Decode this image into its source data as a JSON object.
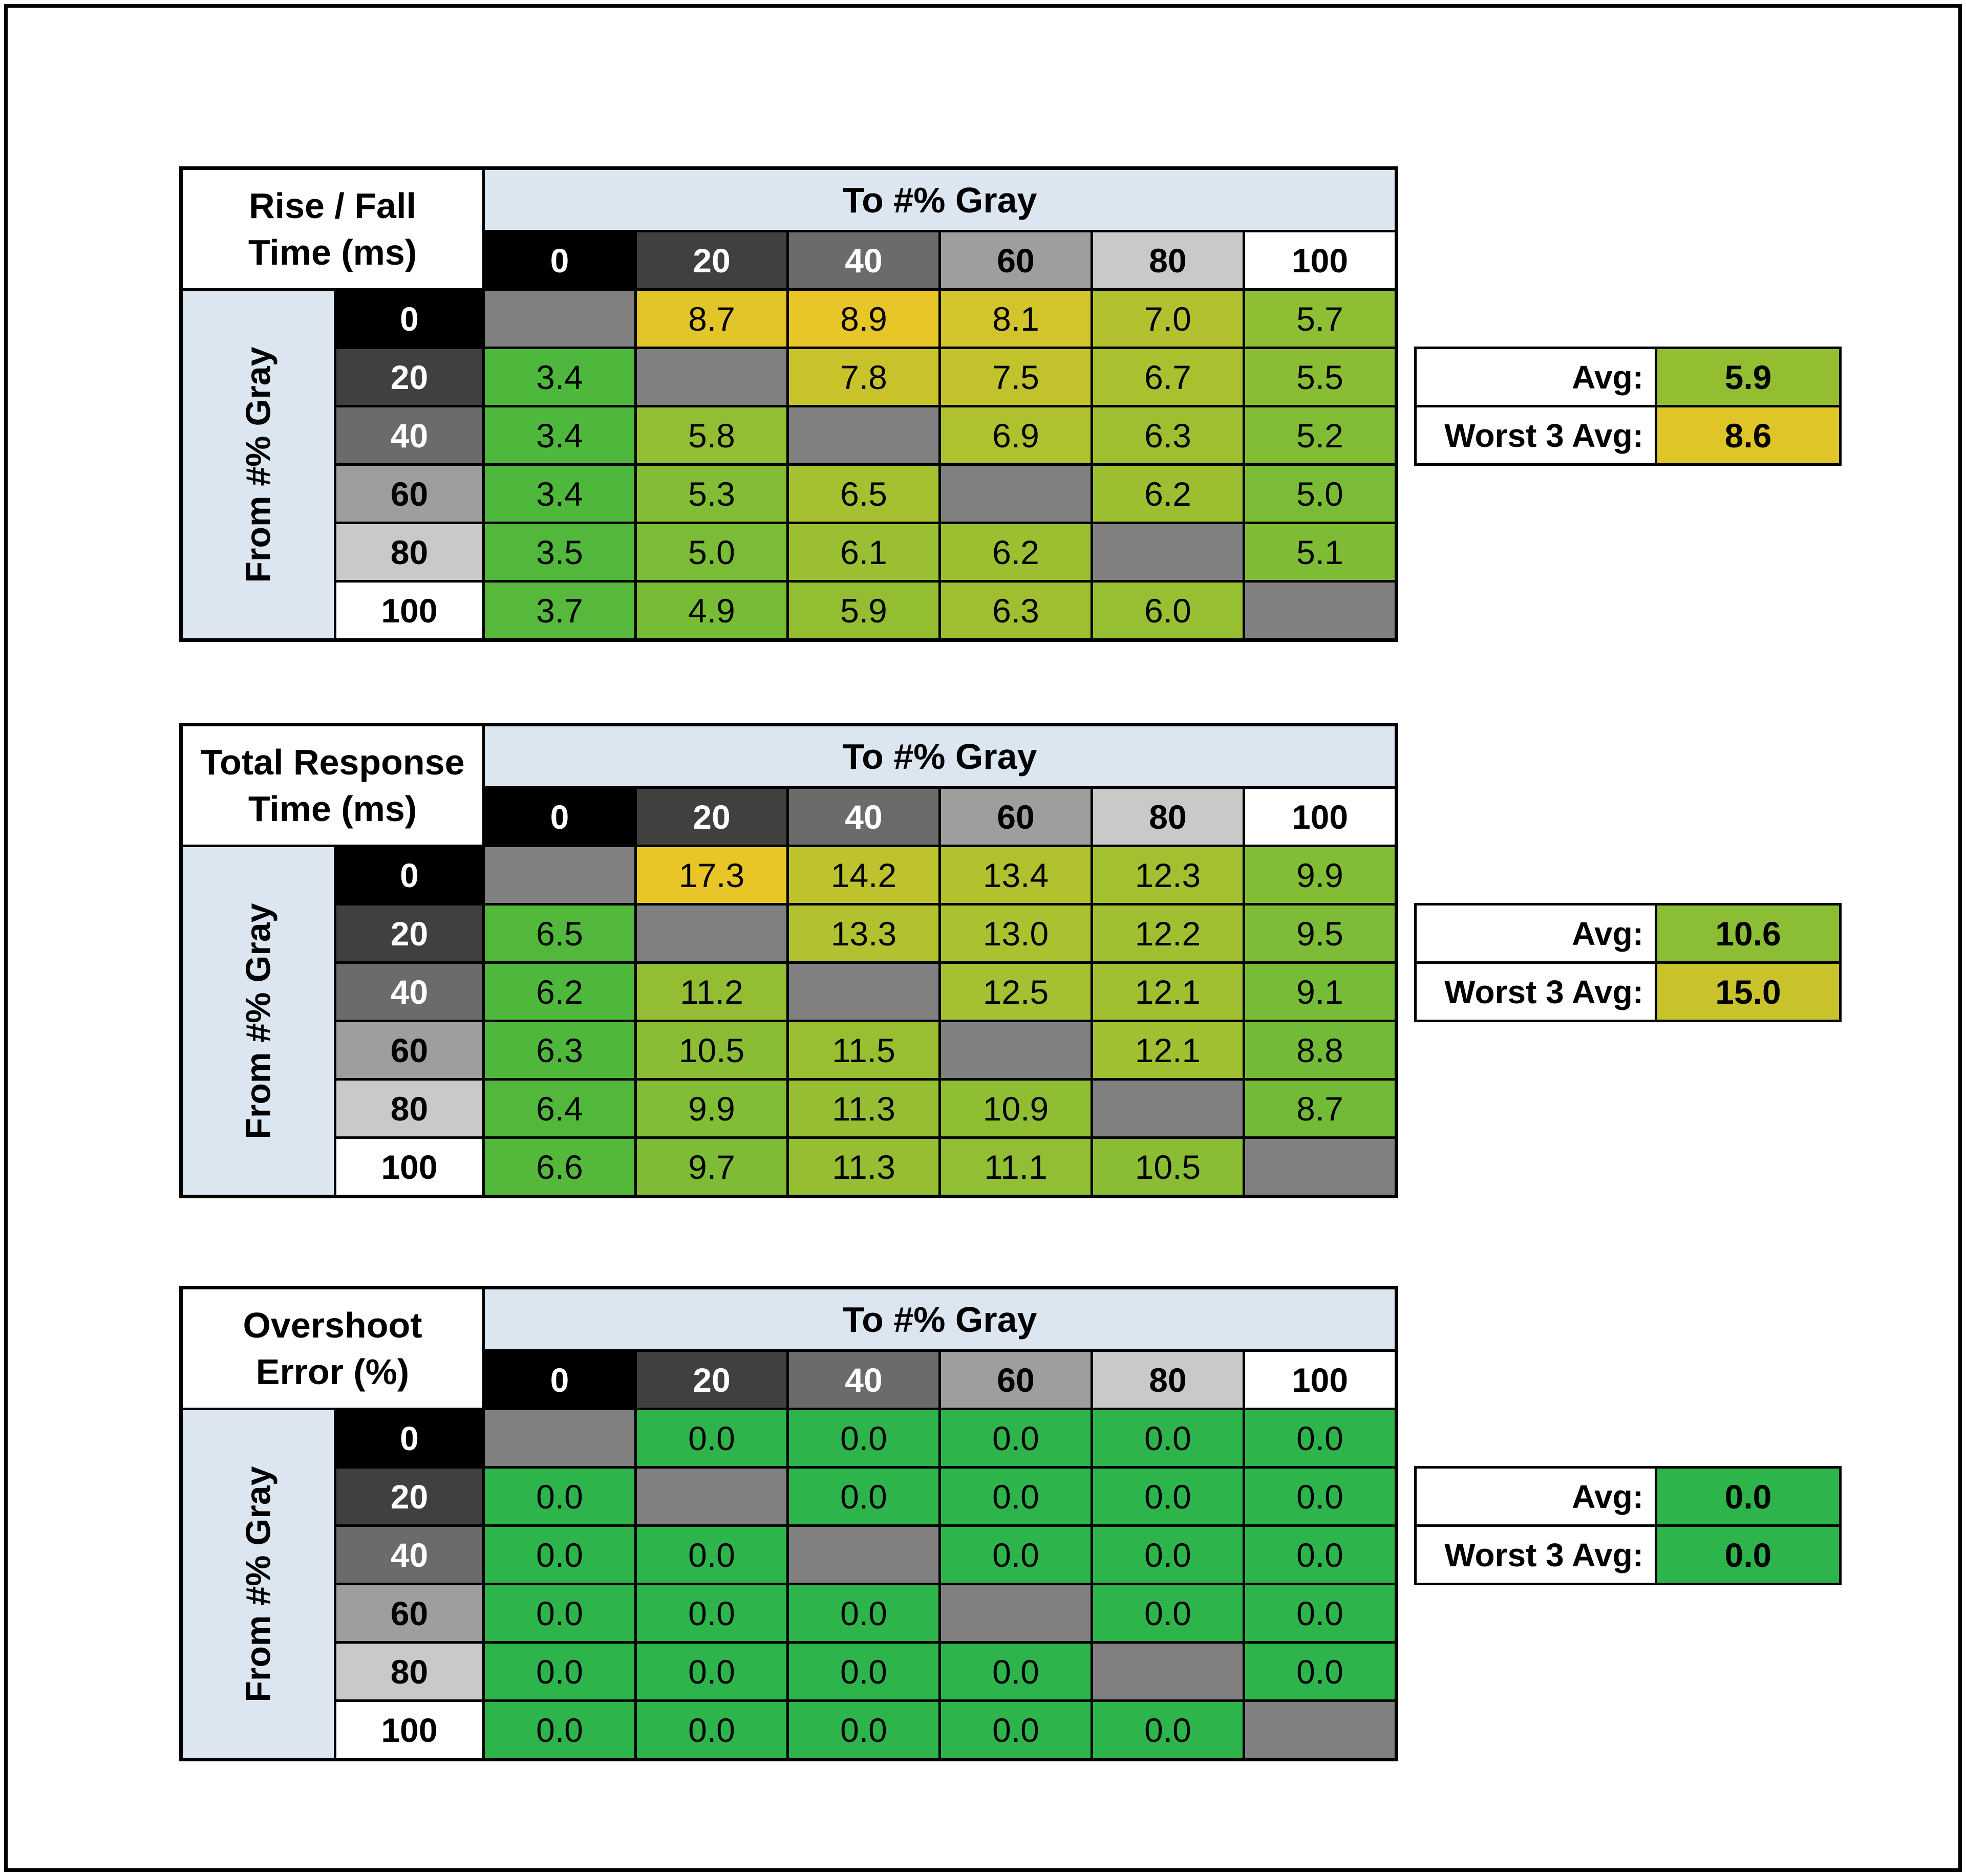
{
  "page": {
    "background": "#ffffff",
    "frame_border_color": "#000000"
  },
  "colors": {
    "header_blue": "#dce6f1",
    "grid_line": "#000000",
    "diagonal_gray": "#808080",
    "gray_levels_bg": [
      "#000000",
      "#404040",
      "#6b6b6b",
      "#9e9e9e",
      "#c9c9c9",
      "#ffffff"
    ],
    "gray_levels_text": [
      "#ffffff",
      "#ffffff",
      "#ffffff",
      "#000000",
      "#000000",
      "#000000"
    ]
  },
  "chart_data": [
    {
      "type": "heatmap",
      "id": "rise-fall-time",
      "title": "Rise / Fall Time (ms)",
      "title_lines": [
        "Rise / Fall",
        "Time (ms)"
      ],
      "xlabel": "To #% Gray",
      "ylabel": "From #% Gray",
      "x_ticks": [
        "0",
        "20",
        "40",
        "60",
        "80",
        "100"
      ],
      "y_ticks": [
        "0",
        "20",
        "40",
        "60",
        "80",
        "100"
      ],
      "values": [
        [
          null,
          8.7,
          8.9,
          8.1,
          7.0,
          5.7
        ],
        [
          3.4,
          null,
          7.8,
          7.5,
          6.7,
          5.5
        ],
        [
          3.4,
          5.8,
          null,
          6.9,
          6.3,
          5.2
        ],
        [
          3.4,
          5.3,
          6.5,
          null,
          6.2,
          5.0
        ],
        [
          3.5,
          5.0,
          6.1,
          6.2,
          null,
          5.1
        ],
        [
          3.7,
          4.9,
          5.9,
          6.3,
          6.0,
          null
        ]
      ],
      "summary": {
        "avg_label": "Avg:",
        "avg": 5.9,
        "worst_label": "Worst 3 Avg:",
        "worst": 8.6
      },
      "color_scale": {
        "min": 3.4,
        "max": 8.9,
        "min_color": "#4eb83c",
        "max_color": "#e8c627"
      }
    },
    {
      "type": "heatmap",
      "id": "total-response-time",
      "title": "Total Response Time (ms)",
      "title_lines": [
        "Total Response",
        "Time (ms)"
      ],
      "xlabel": "To #% Gray",
      "ylabel": "From #% Gray",
      "x_ticks": [
        "0",
        "20",
        "40",
        "60",
        "80",
        "100"
      ],
      "y_ticks": [
        "0",
        "20",
        "40",
        "60",
        "80",
        "100"
      ],
      "values": [
        [
          null,
          17.3,
          14.2,
          13.4,
          12.3,
          9.9
        ],
        [
          6.5,
          null,
          13.3,
          13.0,
          12.2,
          9.5
        ],
        [
          6.2,
          11.2,
          null,
          12.5,
          12.1,
          9.1
        ],
        [
          6.3,
          10.5,
          11.5,
          null,
          12.1,
          8.8
        ],
        [
          6.4,
          9.9,
          11.3,
          10.9,
          null,
          8.7
        ],
        [
          6.6,
          9.7,
          11.3,
          11.1,
          10.5,
          null
        ]
      ],
      "summary": {
        "avg_label": "Avg:",
        "avg": 10.6,
        "worst_label": "Worst 3 Avg:",
        "worst": 15.0
      },
      "color_scale": {
        "min": 6.2,
        "max": 17.3,
        "min_color": "#4eb83c",
        "max_color": "#e8c627"
      }
    },
    {
      "type": "heatmap",
      "id": "overshoot-error",
      "title": "Overshoot Error (%)",
      "title_lines": [
        "Overshoot",
        "Error (%)"
      ],
      "xlabel": "To #% Gray",
      "ylabel": "From #% Gray",
      "x_ticks": [
        "0",
        "20",
        "40",
        "60",
        "80",
        "100"
      ],
      "y_ticks": [
        "0",
        "20",
        "40",
        "60",
        "80",
        "100"
      ],
      "values": [
        [
          null,
          0.0,
          0.0,
          0.0,
          0.0,
          0.0
        ],
        [
          0.0,
          null,
          0.0,
          0.0,
          0.0,
          0.0
        ],
        [
          0.0,
          0.0,
          null,
          0.0,
          0.0,
          0.0
        ],
        [
          0.0,
          0.0,
          0.0,
          null,
          0.0,
          0.0
        ],
        [
          0.0,
          0.0,
          0.0,
          0.0,
          null,
          0.0
        ],
        [
          0.0,
          0.0,
          0.0,
          0.0,
          0.0,
          null
        ]
      ],
      "summary": {
        "avg_label": "Avg:",
        "avg": 0.0,
        "worst_label": "Worst 3 Avg:",
        "worst": 0.0
      },
      "color_scale": {
        "min": 0.0,
        "max": 0.0,
        "min_color": "#2db44b",
        "max_color": "#2db44b"
      }
    }
  ]
}
